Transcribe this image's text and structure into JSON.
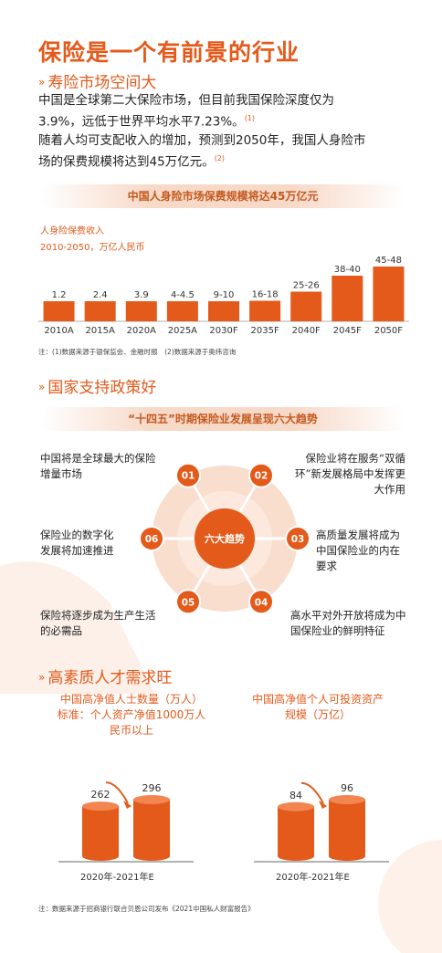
{
  "title": "保险是一个有前景的行业",
  "sections": [
    {
      "arrow": "»",
      "heading": "寿险市场空间大"
    },
    {
      "arrow": "»",
      "heading": "国家支持政策好"
    },
    {
      "arrow": "»",
      "heading": "高素质人才需求旺"
    }
  ],
  "intro": {
    "line1": "中国是全球第二大保险市场，但目前我国保险深度仅为",
    "line2": "3.9%，远低于世界平均水平7.23%。",
    "ref1": "(1)",
    "line3": "随着人均可支配收入的增加，预测到2050年，我国人身险市",
    "line4": "场的保费规模将达到45万亿元。",
    "ref2": "(2)"
  },
  "market_chart": {
    "banner": "中国人身险市场保费规模将达45万亿元",
    "subtitle1": "人身险保费收入",
    "subtitle2": "2010-2050，万亿人民币",
    "note": "注：(1)数据来源于银保监会、金融时报　(2)数据来源于奥纬咨询"
  },
  "trends": {
    "banner": "“十四五”时期保险业发展呈现六大趋势",
    "center": "六大趋势",
    "items": [
      {
        "num": "01",
        "text1": "中国将是全球最大的保险",
        "text2": "增量市场",
        "text3": ""
      },
      {
        "num": "02",
        "text1": "保险业将在服务“双循",
        "text2": "环”新发展格局中发挥更",
        "text3": "大作用"
      },
      {
        "num": "03",
        "text1": "高质量发展将成为",
        "text2": "中国保险业的内在",
        "text3": "要求"
      },
      {
        "num": "04",
        "text1": "高水平对外开放将成为中",
        "text2": "国保险业的鲜明特征",
        "text3": ""
      },
      {
        "num": "05",
        "text1": "保险将逐步成为生产生活",
        "text2": "的必需品",
        "text3": ""
      },
      {
        "num": "06",
        "text1": "保险业的数字化",
        "text2": "发展将加速推进",
        "text3": ""
      }
    ]
  },
  "talent": {
    "left_title1": "中国高净值人士数量（万人）",
    "left_title2": "标准：个人资产净值1000万人",
    "left_title3": "民币以上",
    "right_title1": "中国高净值个人可投资资产",
    "right_title2": "规模（万亿）",
    "left_xlabel": "2020年-2021年E",
    "right_xlabel": "2020年-2021年E"
  },
  "footer_note": "注：数据来源于招商银行联合贝恩公司发布《2021中国私人财富报告》",
  "colors": {
    "accent": "#e35a1b",
    "circle": "#f9dece",
    "bar": "#e35a1b"
  },
  "chart_data": [
    {
      "type": "bar",
      "title": "中国人身险市场保费规模将达45万亿元",
      "subtitle": "人身险保费收入 2010-2050，万亿人民币",
      "categories": [
        "2010A",
        "2015A",
        "2020A",
        "2025A",
        "2030F",
        "2035F",
        "2040F",
        "2045F",
        "2050F"
      ],
      "value_labels": [
        "1.2",
        "2.4",
        "3.9",
        "4-4.5",
        "9-10",
        "16-18",
        "25-26",
        "38-40",
        "45-48"
      ],
      "values": [
        1.2,
        2.4,
        3.9,
        4.5,
        10,
        18,
        26,
        40,
        48
      ],
      "xlabel": "",
      "ylabel": ""
    },
    {
      "type": "bar",
      "title": "中国高净值人士数量（万人）",
      "categories": [
        "2020",
        "2021E"
      ],
      "values": [
        262,
        296
      ],
      "xlabel": "2020年-2021年E"
    },
    {
      "type": "bar",
      "title": "中国高净值个人可投资资产规模（万亿）",
      "categories": [
        "2020",
        "2021E"
      ],
      "values": [
        84,
        96
      ],
      "xlabel": "2020年-2021年E"
    }
  ]
}
